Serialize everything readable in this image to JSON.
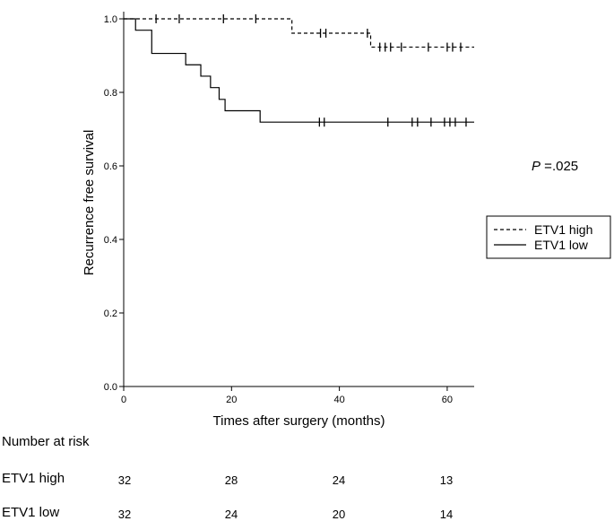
{
  "chart_data": {
    "type": "line",
    "title": "",
    "xlabel": "Times after surgery (months)",
    "ylabel": "Recurrence free survival",
    "xlim": [
      0,
      65
    ],
    "ylim": [
      0,
      1.0
    ],
    "x_ticks": [
      0,
      20,
      40,
      60
    ],
    "y_ticks": [
      0.0,
      0.2,
      0.4,
      0.6,
      0.8,
      1.0
    ],
    "x_tick_labels": [
      "0",
      "20",
      "40",
      "60"
    ],
    "y_tick_labels": [
      "0.0",
      "0.2",
      "0.4",
      "0.6",
      "0.8",
      "1.0"
    ],
    "legend_position": "right",
    "p_value_prefix": "P",
    "p_value": " =.025",
    "series": [
      {
        "name": "ETV1 high",
        "style": "dashed",
        "steps": [
          [
            0,
            1.0
          ],
          [
            31.2,
            0.961
          ],
          [
            45.8,
            0.923
          ],
          [
            65,
            0.923
          ]
        ],
        "censored": [
          [
            6,
            1.0
          ],
          [
            10.3,
            1.0
          ],
          [
            18.5,
            1.0
          ],
          [
            24.5,
            1.0
          ],
          [
            36.5,
            0.961
          ],
          [
            37.5,
            0.961
          ],
          [
            45.2,
            0.961
          ],
          [
            47.5,
            0.923
          ],
          [
            48.5,
            0.923
          ],
          [
            49.5,
            0.923
          ],
          [
            51.5,
            0.923
          ],
          [
            56.5,
            0.923
          ],
          [
            60,
            0.923
          ],
          [
            61,
            0.923
          ],
          [
            62.5,
            0.923
          ]
        ]
      },
      {
        "name": "ETV1 low",
        "style": "solid",
        "steps": [
          [
            0,
            1.0
          ],
          [
            2.2,
            0.969
          ],
          [
            5.2,
            0.906
          ],
          [
            11.5,
            0.875
          ],
          [
            14.3,
            0.844
          ],
          [
            16.1,
            0.813
          ],
          [
            17.7,
            0.781
          ],
          [
            18.8,
            0.75
          ],
          [
            25.3,
            0.719
          ],
          [
            65,
            0.719
          ]
        ],
        "censored": [
          [
            36.3,
            0.719
          ],
          [
            37.2,
            0.719
          ],
          [
            49,
            0.719
          ],
          [
            53.5,
            0.719
          ],
          [
            54.5,
            0.719
          ],
          [
            57,
            0.719
          ],
          [
            59.5,
            0.719
          ],
          [
            60.5,
            0.719
          ],
          [
            61.5,
            0.719
          ],
          [
            63.5,
            0.719
          ]
        ]
      }
    ]
  },
  "risk_table": {
    "title": "Number at risk",
    "rows": [
      {
        "label": "ETV1 high",
        "values": [
          "32",
          "28",
          "24",
          "13"
        ]
      },
      {
        "label": "ETV1 low",
        "values": [
          "32",
          "24",
          "20",
          "14"
        ]
      }
    ]
  }
}
